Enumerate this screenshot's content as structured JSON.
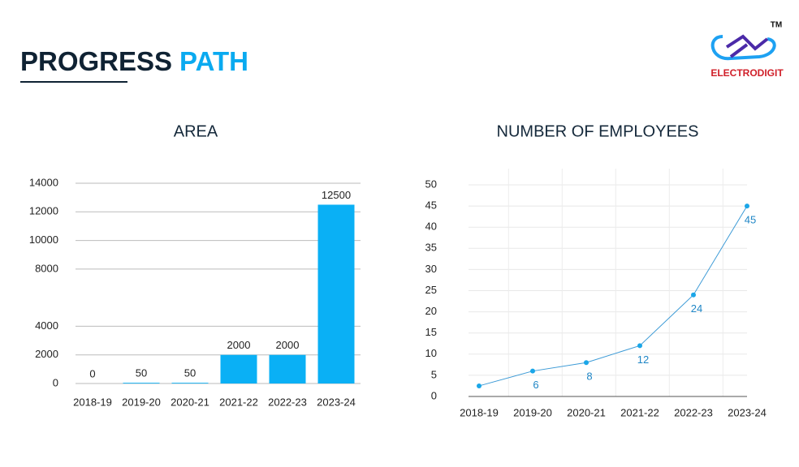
{
  "header": {
    "title_first": "PROGRESS",
    "title_second": "PATH"
  },
  "logo": {
    "name": "ELECTRODIGIT",
    "trademark": "TM"
  },
  "chart_data": [
    {
      "type": "bar",
      "title": "AREA",
      "categories": [
        "2018-19",
        "2019-20",
        "2020-21",
        "2021-22",
        "2022-23",
        "2023-24"
      ],
      "values": [
        0,
        50,
        50,
        2000,
        2000,
        12500
      ],
      "color": "#0ab0f5",
      "ylim": [
        0,
        14000
      ],
      "yticks": [
        0,
        2000,
        4000,
        8000,
        10000,
        12000,
        14000
      ],
      "grid": true
    },
    {
      "type": "line",
      "title": "NUMBER OF EMPLOYEES",
      "categories": [
        "2018-19",
        "2019-20",
        "2020-21",
        "2021-22",
        "2022-23",
        "2023-24"
      ],
      "values": [
        2.5,
        6,
        8,
        12,
        24,
        45
      ],
      "value_labels": [
        null,
        "6",
        "8",
        "12",
        "24",
        "45"
      ],
      "color": "#1aa6e8",
      "ylim": [
        0,
        50
      ],
      "yticks": [
        0,
        5,
        10,
        15,
        20,
        25,
        30,
        35,
        40,
        45,
        50
      ],
      "grid": true
    }
  ]
}
